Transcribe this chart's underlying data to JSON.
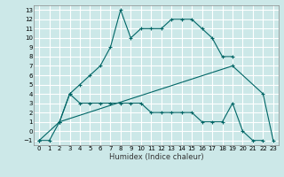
{
  "xlabel": "Humidex (Indice chaleur)",
  "bg_color": "#cce8e8",
  "grid_color": "#ffffff",
  "line_color": "#006666",
  "xlim": [
    -0.5,
    23.5
  ],
  "ylim": [
    -1.5,
    13.5
  ],
  "xticks": [
    0,
    1,
    2,
    3,
    4,
    5,
    6,
    7,
    8,
    9,
    10,
    11,
    12,
    13,
    14,
    15,
    16,
    17,
    18,
    19,
    20,
    21,
    22,
    23
  ],
  "yticks": [
    -1,
    0,
    1,
    2,
    3,
    4,
    5,
    6,
    7,
    8,
    9,
    10,
    11,
    12,
    13
  ],
  "curve1_x": [
    0,
    1,
    2,
    3,
    4,
    5,
    6,
    7,
    8,
    9,
    10,
    11,
    12,
    13,
    14,
    15,
    16,
    17,
    18,
    19
  ],
  "curve1_y": [
    -1,
    -1,
    1,
    4,
    5,
    6,
    7,
    9,
    13,
    10,
    11,
    11,
    11,
    12,
    12,
    12,
    11,
    10,
    8,
    8
  ],
  "curve2_x": [
    0,
    2,
    3,
    4,
    5,
    6,
    7,
    8,
    9,
    10,
    11,
    12,
    13,
    14,
    15,
    16,
    17,
    18,
    19,
    20,
    21,
    22
  ],
  "curve2_y": [
    -1,
    1,
    4,
    3,
    3,
    3,
    3,
    3,
    3,
    3,
    2,
    2,
    2,
    2,
    2,
    1,
    1,
    1,
    3,
    0,
    -1,
    -1
  ],
  "curve3_x": [
    2,
    19,
    22,
    23
  ],
  "curve3_y": [
    1,
    7,
    4,
    -1
  ]
}
